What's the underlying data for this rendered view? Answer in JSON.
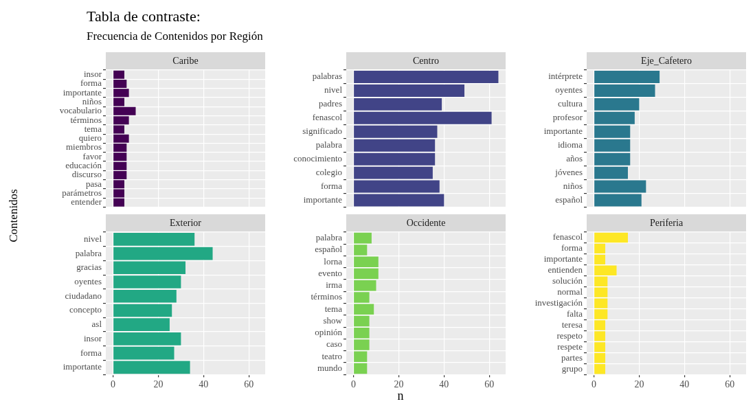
{
  "chart_data": [
    {
      "type": "bar",
      "orientation": "horizontal",
      "title": "Caribe",
      "annotations": [
        "Tabla de contraste:",
        "Frecuencia de Contenidos por Región"
      ],
      "ylabel": "Contenidos",
      "categories": [
        "insor",
        "forma",
        "importante",
        "niños",
        "vocabulario",
        "términos",
        "tema",
        "quiero",
        "miembros",
        "favor",
        "educación",
        "discurso",
        "pasa",
        "parámetros",
        "entender"
      ],
      "values": [
        5,
        6,
        7,
        5,
        10,
        7,
        5,
        7,
        6,
        6,
        6,
        6,
        5,
        5,
        5
      ],
      "color": "#440154",
      "xlim": [
        -3.2,
        67.2
      ],
      "xticks": [
        0,
        20,
        40,
        60
      ],
      "grid": true,
      "tick_labels": "y"
    },
    {
      "type": "bar",
      "orientation": "horizontal",
      "title": "Centro",
      "categories": [
        "palabras",
        "nivel",
        "padres",
        "fenascol",
        "significado",
        "palabra",
        "conocimiento",
        "colegio",
        "forma",
        "importante"
      ],
      "values": [
        64,
        49,
        39,
        61,
        37,
        36,
        36,
        35,
        38,
        40
      ],
      "color": "#414487",
      "xlim": [
        -3.2,
        67.2
      ],
      "xticks": [
        0,
        20,
        40,
        60
      ],
      "grid": true,
      "tick_labels": "y"
    },
    {
      "type": "bar",
      "orientation": "horizontal",
      "title": "Eje_Cafetero",
      "categories": [
        "intérprete",
        "oyentes",
        "cultura",
        "profesor",
        "importante",
        "idioma",
        "años",
        "jóvenes",
        "niños",
        "español"
      ],
      "values": [
        29,
        27,
        20,
        18,
        16,
        16,
        16,
        15,
        23,
        21
      ],
      "color": "#2a788e",
      "xlim": [
        -3.2,
        67.2
      ],
      "xticks": [
        0,
        20,
        40,
        60
      ],
      "grid": true,
      "tick_labels": "y"
    },
    {
      "type": "bar",
      "orientation": "horizontal",
      "title": "Exterior",
      "categories": [
        "nivel",
        "palabra",
        "gracias",
        "oyentes",
        "ciudadano",
        "concepto",
        "asl",
        "insor",
        "forma",
        "importante"
      ],
      "values": [
        36,
        44,
        32,
        30,
        28,
        26,
        25,
        30,
        27,
        34
      ],
      "color": "#22a884",
      "xlim": [
        -3.2,
        67.2
      ],
      "xticks": [
        0,
        20,
        40,
        60
      ],
      "grid": true
    },
    {
      "type": "bar",
      "orientation": "horizontal",
      "title": "Occidente",
      "xlabel": "n",
      "categories": [
        "palabra",
        "español",
        "lorna",
        "evento",
        "irma",
        "términos",
        "tema",
        "show",
        "opinión",
        "caso",
        "teatro",
        "mundo"
      ],
      "values": [
        8,
        6,
        11,
        11,
        10,
        7,
        9,
        7,
        7,
        7,
        6,
        6
      ],
      "color": "#7ad151",
      "xlim": [
        -3.2,
        67.2
      ],
      "xticks": [
        0,
        20,
        40,
        60
      ],
      "grid": true
    },
    {
      "type": "bar",
      "orientation": "horizontal",
      "title": "Periferia",
      "categories": [
        "fenascol",
        "forma",
        "importante",
        "entienden",
        "solución",
        "normal",
        "investigación",
        "falta",
        "teresa",
        "respeto",
        "respete",
        "partes",
        "grupo"
      ],
      "values": [
        15,
        5,
        5,
        10,
        6,
        6,
        6,
        6,
        5,
        5,
        5,
        5,
        5
      ],
      "color": "#fde725",
      "xlim": [
        -3.2,
        67.2
      ],
      "xticks": [
        0,
        20,
        40,
        60
      ],
      "grid": true
    }
  ]
}
